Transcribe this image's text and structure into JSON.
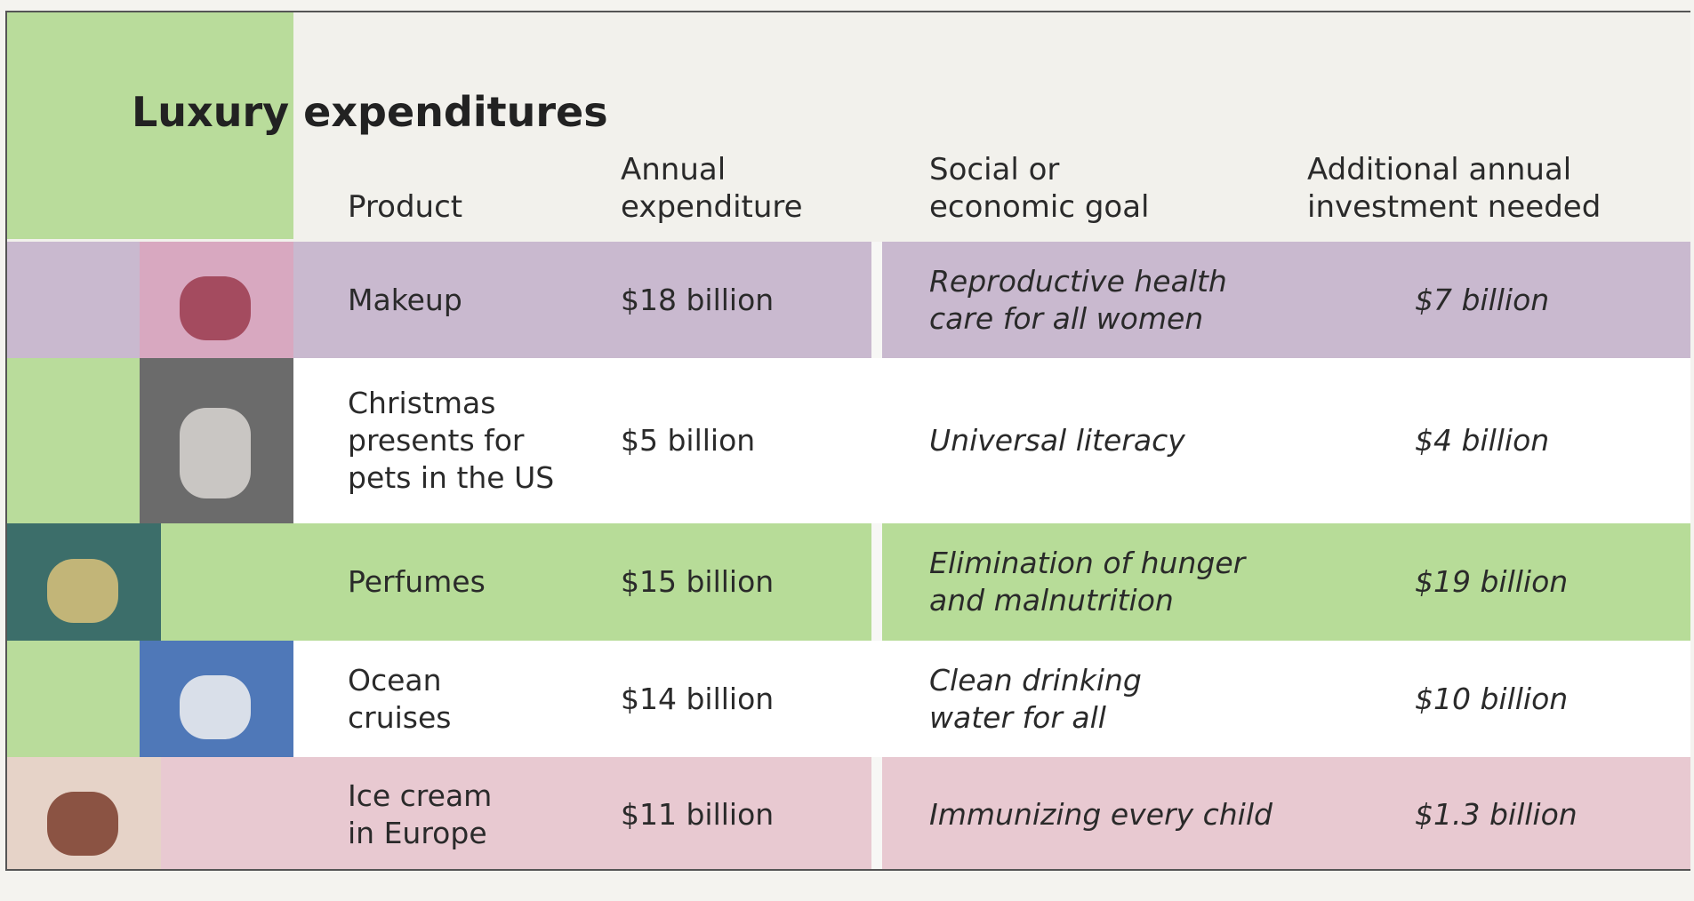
{
  "title": "Luxury expenditures",
  "table": {
    "header": [
      "Product",
      "Annual\nexpenditure",
      "Social or\neconomic goal",
      "Additional annual\ninvestment needed"
    ],
    "rows": [
      [
        "Makeup",
        "$18 billion",
        "Reproductive health\ncare for all women",
        "$7 billion"
      ],
      [
        "Christmas\npresents for\npets in the US",
        "$5 billion",
        "Universal literacy",
        "$4 billion"
      ],
      [
        "Perfumes",
        "$15 billion",
        "Elimination of hunger\nand malnutrition",
        "$19 billion"
      ],
      [
        "Ocean\ncruises",
        "$14 billion",
        "Clean drinking\nwater for all",
        "$10 billion"
      ],
      [
        "Ice cream\nin Europe",
        "$11 billion",
        "Immunizing every child",
        "$1.3 billion"
      ]
    ]
  }
}
